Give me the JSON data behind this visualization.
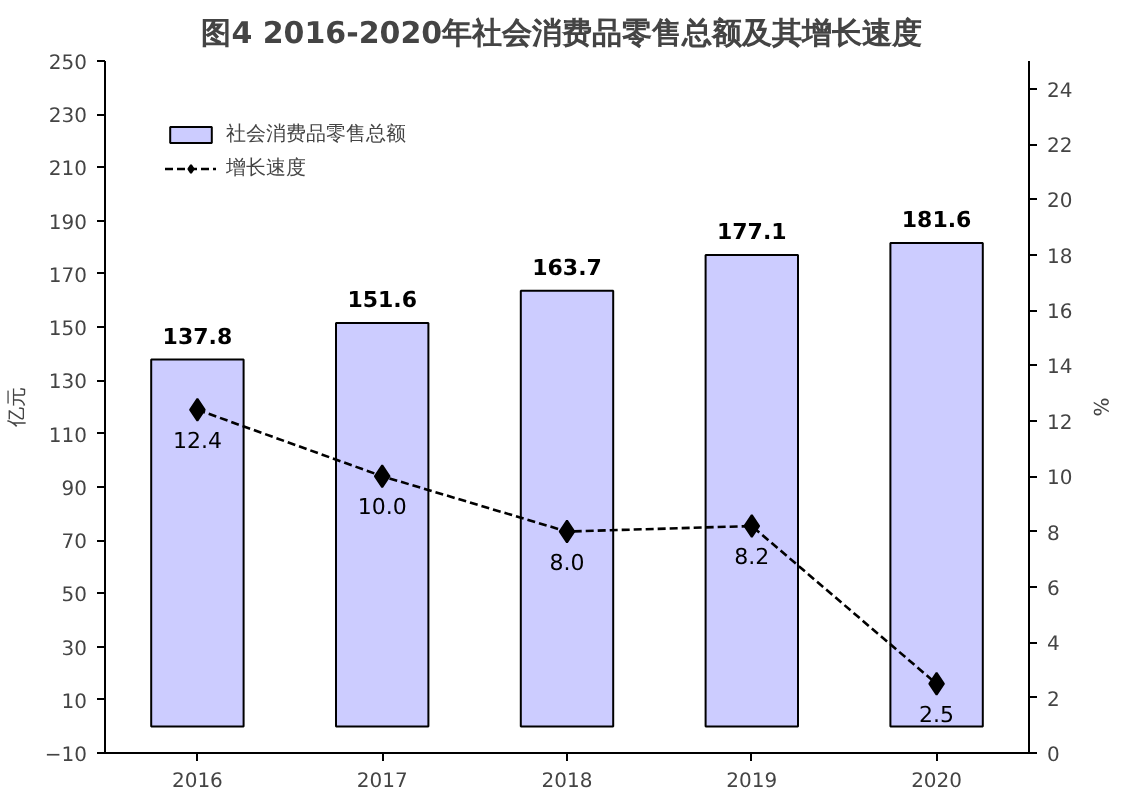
{
  "chart_data": {
    "type": "bar",
    "title": "图4  2016-2020年社会消费品零售总额及其增长速度",
    "ylabel": "亿元",
    "y2label": "%",
    "categories": [
      "2016",
      "2017",
      "2018",
      "2019",
      "2020"
    ],
    "series": [
      {
        "name": "社会消费品零售总额",
        "color": "#ccccff",
        "values": [
          137.8,
          151.6,
          163.7,
          177.1,
          181.6
        ],
        "value_labels": [
          "137.8",
          "151.6",
          "163.7",
          "177.1",
          "181.6"
        ]
      },
      {
        "name": "增长速度",
        "type": "line",
        "axis": "y2",
        "color": "#000000",
        "marker": "diamond",
        "line_style": "dashed",
        "values": [
          12.4,
          10.0,
          8.0,
          8.2,
          2.5
        ],
        "value_labels": [
          "12.4",
          "10.0",
          "8.0",
          "8.2",
          "2.5"
        ]
      }
    ],
    "ylim": [
      -10,
      250
    ],
    "yticks": [
      -10,
      10,
      30,
      50,
      70,
      90,
      110,
      130,
      150,
      170,
      190,
      210,
      230,
      250
    ],
    "y2lim": [
      0,
      25
    ],
    "y2ticks": [
      0,
      2,
      4,
      6,
      8,
      10,
      12,
      14,
      16,
      18,
      20,
      22,
      24
    ],
    "grid": false,
    "legend": "top left"
  }
}
